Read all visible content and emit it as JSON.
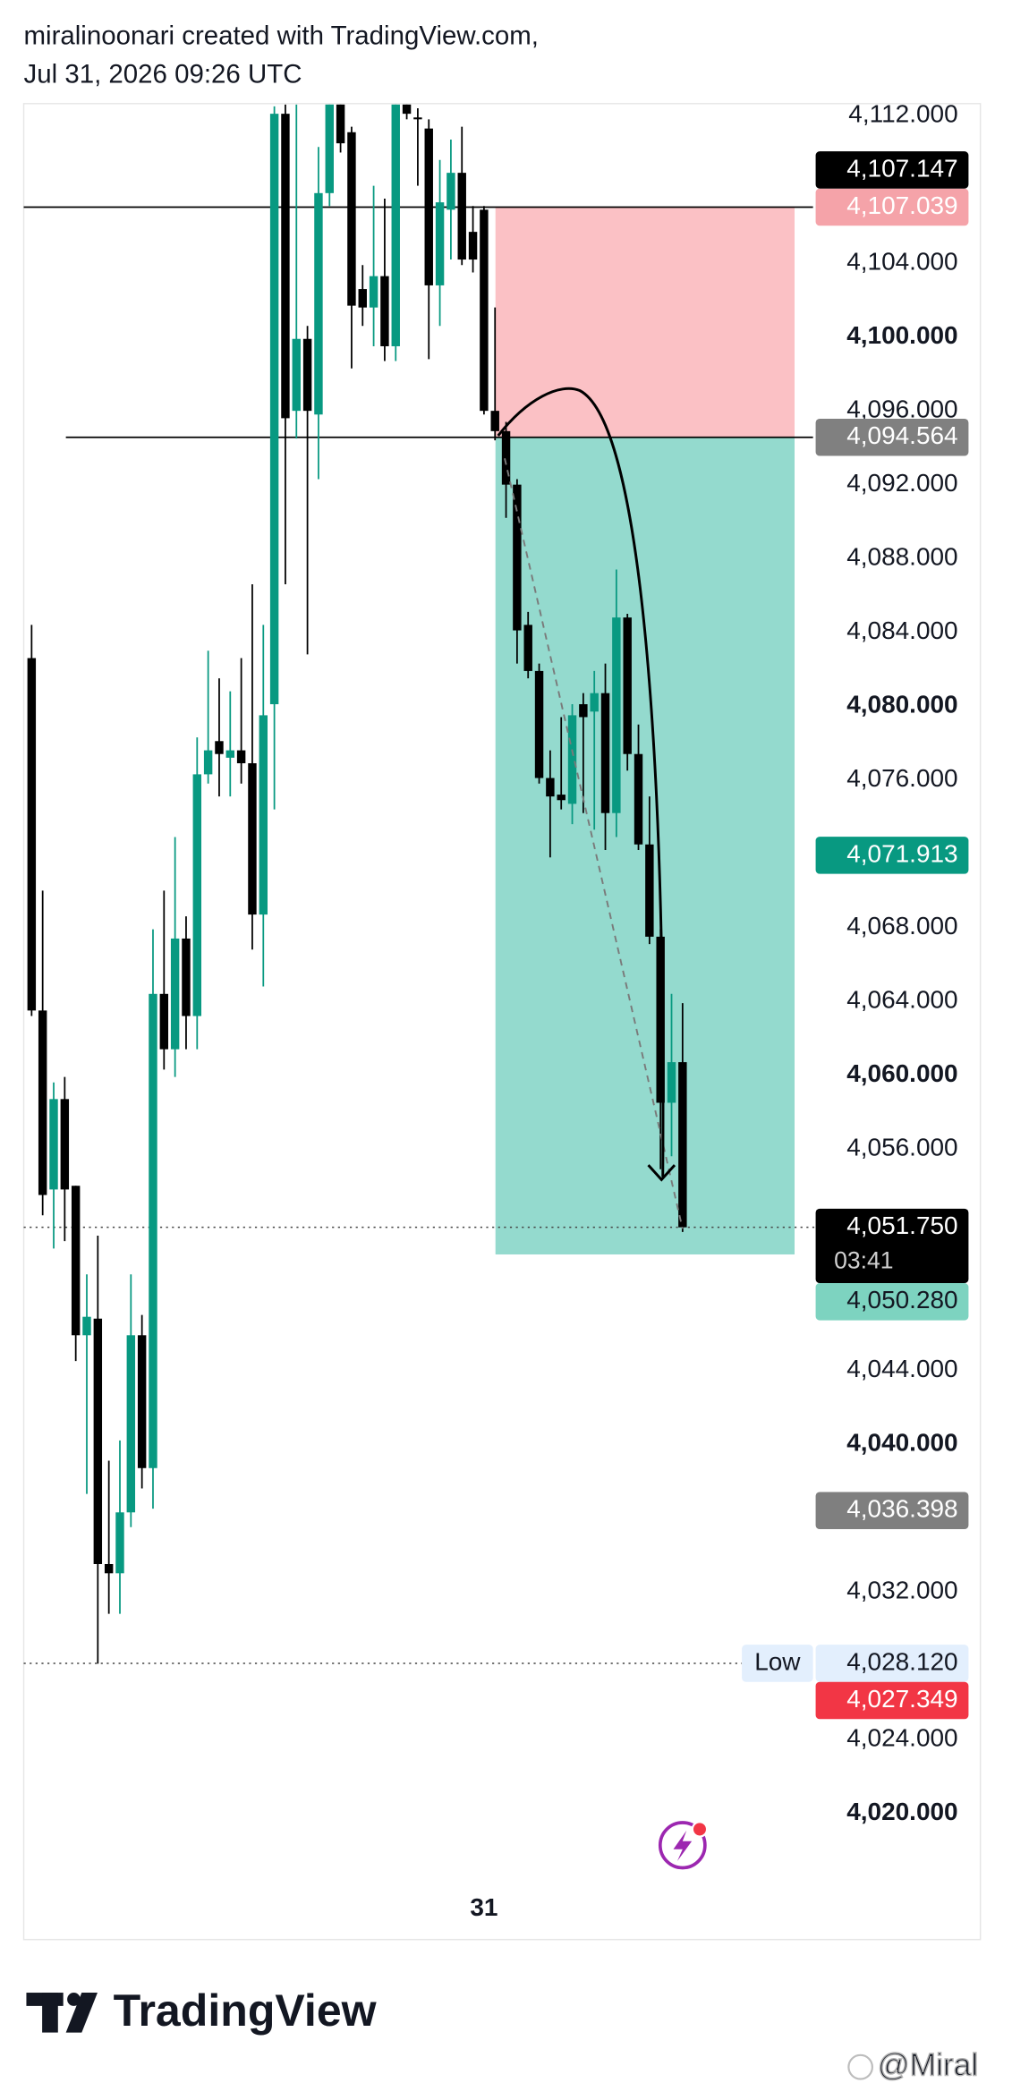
{
  "header": {
    "line1": "miralinoonari created with TradingView.com,",
    "line2": "Jul 31, 2026 09:26 UTC"
  },
  "chart_data": {
    "type": "candlestick",
    "categories": [
      null,
      null,
      null,
      null,
      null,
      null,
      null,
      null,
      null,
      null,
      null,
      null,
      null,
      null,
      null,
      null,
      null,
      null,
      null,
      null,
      null,
      null,
      null,
      null,
      null,
      null,
      null,
      null,
      null,
      null,
      null,
      null,
      null,
      null,
      null,
      null,
      null,
      null,
      null,
      null,
      null,
      "31",
      null,
      null,
      null,
      null,
      null,
      null,
      null,
      null,
      null,
      null,
      null,
      null,
      null,
      null,
      null,
      null,
      null,
      null
    ],
    "open": [
      4082.6,
      4063.5,
      4053.8,
      4058.7,
      4054.0,
      4045.9,
      4046.8,
      4033.5,
      4033.0,
      4036.3,
      4045.9,
      4038.7,
      4064.4,
      4061.4,
      4067.4,
      4063.2,
      4076.3,
      4078.1,
      4077.2,
      4077.6,
      4076.9,
      4068.7,
      4080.1,
      4112.1,
      4096.0,
      4099.9,
      4095.8,
      4107.8,
      4112.6,
      4111.1,
      4102.6,
      4101.6,
      4103.3,
      4099.5,
      4112.6,
      4111.9,
      4111.3,
      4102.8,
      4106.9,
      4108.9,
      4105.7,
      4106.9,
      4096.0,
      4094.9,
      4092.0,
      4084.4,
      4081.9,
      4076.1,
      4075.2,
      4074.7,
      4080.1,
      4079.7,
      4080.7,
      4074.2,
      4084.8,
      4077.4,
      4072.5,
      4067.5,
      4058.5,
      4060.7
    ],
    "high": [
      4084.4,
      4070.0,
      4059.6,
      4059.9,
      4054.0,
      4049.2,
      4051.3,
      4039.1,
      4040.2,
      4049.2,
      4047.0,
      4067.9,
      4070.0,
      4072.9,
      4068.6,
      4078.3,
      4083.0,
      4081.5,
      4080.8,
      4082.6,
      4086.6,
      4084.4,
      4112.5,
      4112.6,
      4112.6,
      4100.6,
      4110.3,
      4112.6,
      4112.6,
      4111.4,
      4103.9,
      4108.2,
      4107.5,
      4112.6,
      4112.6,
      4112.4,
      4111.8,
      4109.6,
      4110.7,
      4111.4,
      4107.1,
      4107.1,
      4101.6,
      4095.4,
      4092.3,
      4085.1,
      4082.3,
      4077.6,
      4079.4,
      4080.1,
      4080.7,
      4081.9,
      4082.3,
      4087.4,
      4085.0,
      4079.0,
      4075.1,
      4067.9,
      4064.4,
      4063.9
    ],
    "low": [
      4063.2,
      4052.4,
      4050.6,
      4051.0,
      4044.5,
      4037.3,
      4028.1,
      4030.8,
      4030.8,
      4035.5,
      4037.6,
      4036.5,
      4060.3,
      4059.9,
      4061.4,
      4061.4,
      4075.8,
      4075.1,
      4075.1,
      4075.8,
      4066.8,
      4064.8,
      4074.4,
      4086.6,
      4094.5,
      4082.8,
      4092.3,
      4107.1,
      4110.0,
      4098.3,
      4100.6,
      4099.5,
      4098.7,
      4098.7,
      4111.8,
      4108.2,
      4098.8,
      4100.6,
      4104.2,
      4103.9,
      4103.5,
      4095.8,
      4094.4,
      4090.2,
      4082.3,
      4081.5,
      4075.8,
      4071.8,
      4074.4,
      4073.6,
      4074.2,
      4073.3,
      4072.2,
      4072.9,
      4076.5,
      4072.2,
      4067.1,
      4054.9,
      4055.6,
      4051.5
    ],
    "close": [
      4063.5,
      4053.5,
      4058.7,
      4053.8,
      4045.9,
      4046.9,
      4033.5,
      4033.0,
      4036.3,
      4045.9,
      4038.7,
      4064.4,
      4061.4,
      4067.4,
      4063.2,
      4076.3,
      4077.6,
      4077.4,
      4077.6,
      4076.9,
      4068.7,
      4079.5,
      4112.1,
      4095.6,
      4099.9,
      4096.0,
      4107.8,
      4112.6,
      4110.5,
      4101.7,
      4101.6,
      4103.3,
      4099.5,
      4112.6,
      4112.1,
      4111.8,
      4102.8,
      4107.3,
      4108.9,
      4104.2,
      4104.2,
      4096.0,
      4094.9,
      4092.0,
      4084.1,
      4081.9,
      4076.1,
      4075.1,
      4074.9,
      4079.5,
      4079.4,
      4080.7,
      4074.2,
      4084.8,
      4077.4,
      4072.5,
      4067.5,
      4058.5,
      4060.7,
      4051.75
    ],
    "up_color": "#089981",
    "down_color": "#000000",
    "ylim": [
      4013.15,
      4112.65
    ],
    "yticks": [
      {
        "value": 4112,
        "label": "4,112.000"
      },
      {
        "value": 4104,
        "label": "4,104.000"
      },
      {
        "value": 4100,
        "label": "4,100.000"
      },
      {
        "value": 4096,
        "label": "4,096.000"
      },
      {
        "value": 4092,
        "label": "4,092.000"
      },
      {
        "value": 4088,
        "label": "4,088.000"
      },
      {
        "value": 4084,
        "label": "4,084.000"
      },
      {
        "value": 4080,
        "label": "4,080.000"
      },
      {
        "value": 4076,
        "label": "4,076.000"
      },
      {
        "value": 4068,
        "label": "4,068.000"
      },
      {
        "value": 4064,
        "label": "4,064.000"
      },
      {
        "value": 4060,
        "label": "4,060.000"
      },
      {
        "value": 4056,
        "label": "4,056.000"
      },
      {
        "value": 4044,
        "label": "4,044.000"
      },
      {
        "value": 4040,
        "label": "4,040.000"
      },
      {
        "value": 4032,
        "label": "4,032.000"
      },
      {
        "value": 4024,
        "label": "4,024.000"
      },
      {
        "value": 4020,
        "label": "4,020.000"
      }
    ],
    "position": {
      "loss_color": "#fbc1c5",
      "profit_color": "#94dace",
      "stop": {
        "value": 4107.039,
        "label": "4,107.039",
        "color": "#f5a3a9"
      },
      "entry": {
        "value": 4094.564,
        "label": "4,094.564",
        "color": "#808080"
      },
      "target": {
        "value": 4050.28,
        "label": "4,050.280",
        "color": "#7dd3c0",
        "text_color": "#131722"
      }
    },
    "price_labels": [
      {
        "value": 4051.75,
        "label": "4,051.750",
        "countdown": "03:41",
        "color": "#000000",
        "line": "dotted"
      },
      {
        "value": 4107.147,
        "label": "4,107.147",
        "color": "#000000"
      },
      {
        "value": 4071.913,
        "label": "4,071.913",
        "color": "#089981"
      },
      {
        "value": 4036.398,
        "label": "4,036.398",
        "color": "#7f7f7f"
      },
      {
        "value": 4028.12,
        "label": "4,028.120",
        "name": "Low",
        "color": "#e3effd",
        "text_color": "#131722",
        "line": "dotted"
      },
      {
        "value": 4027.349,
        "label": "4,027.349",
        "color": "#f23645"
      }
    ]
  },
  "footer": {
    "brand": "TradingView",
    "watermark": "@Miral"
  }
}
